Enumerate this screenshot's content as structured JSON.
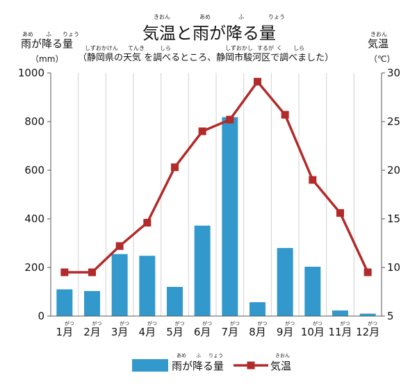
{
  "header": {
    "title": "気温と雨が降る量",
    "title_ruby": [
      "きおん",
      "あめ",
      "ふ",
      "りょう"
    ],
    "subtitle": "（静岡県の天気 を調べるところ、静岡市駿河区で調べました）",
    "subtitle_ruby": [
      "しずおかけん",
      "てんき",
      "しら",
      "しずおかし",
      "するが",
      "く",
      "しら"
    ],
    "left_axis_name": "雨が降る量",
    "left_axis_ruby": [
      "あめ",
      "ふ",
      "りょう"
    ],
    "left_axis_unit": "（mm）",
    "right_axis_name": "気温",
    "right_axis_ruby": "きおん",
    "right_axis_unit": "（℃）"
  },
  "chart_data": {
    "type": "bar",
    "categories": [
      "1月",
      "2月",
      "3月",
      "4月",
      "5月",
      "6月",
      "7月",
      "8月",
      "9月",
      "10月",
      "11月",
      "12月"
    ],
    "category_ruby": "がつ",
    "series": [
      {
        "name": "雨が降る量",
        "type": "bar",
        "axis": "left",
        "color": "#3399cc",
        "values": [
          110,
          103,
          255,
          248,
          120,
          372,
          818,
          57,
          280,
          203,
          23,
          10
        ]
      },
      {
        "name": "気温",
        "type": "line",
        "axis": "right",
        "color": "#b22a2a",
        "values": [
          9.5,
          9.5,
          12.2,
          14.6,
          20.3,
          24.0,
          25.2,
          29.1,
          25.7,
          19.0,
          15.6,
          9.5
        ]
      }
    ],
    "legend_ruby": {
      "雨が降る量": [
        "あめ",
        "ふ",
        "りょう"
      ],
      "気温": "きおん"
    },
    "ylim_left": [
      0,
      1000
    ],
    "yticks_left": [
      "0",
      "200",
      "400",
      "600",
      "800",
      "1000"
    ],
    "ylim_right": [
      5,
      30
    ],
    "yticks_right": [
      "5",
      "10",
      "15",
      "20",
      "25",
      "30"
    ],
    "grid": "vertical",
    "legend_position": "bottom"
  }
}
